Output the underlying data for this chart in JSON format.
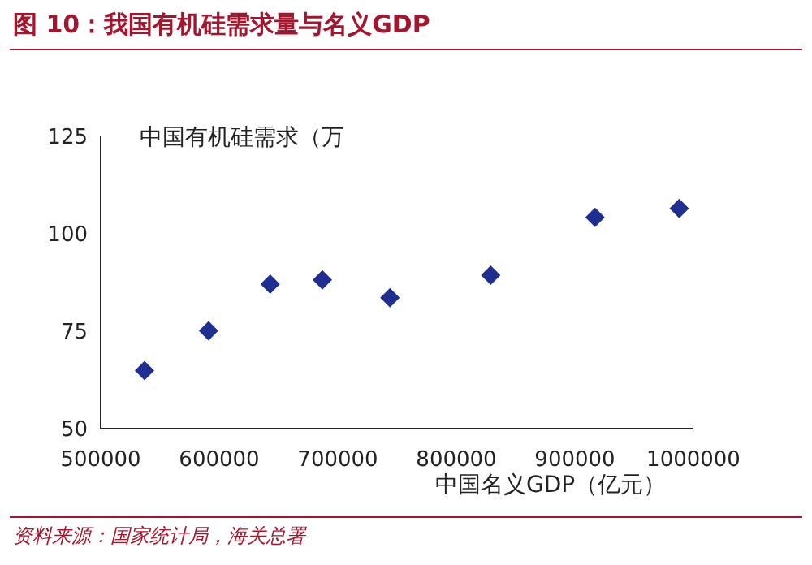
{
  "chart_data": {
    "type": "scatter",
    "title": "图 10：我国有机硅需求量与名义GDP",
    "xlabel": "中国名义GDP（亿元）",
    "ylabel": "中国有机硅需求（万",
    "x": [
      537000,
      591000,
      643000,
      687000,
      744000,
      829000,
      917000,
      988000
    ],
    "series": [
      {
        "color": "#1f2f8f",
        "values": [
          64.9,
          75.1,
          87.1,
          88.2,
          83.6,
          89.4,
          104.2,
          106.5
        ]
      }
    ],
    "xlim": [
      500000,
      1000000
    ],
    "xticks": [
      500000,
      600000,
      700000,
      800000,
      900000,
      1000000
    ],
    "ylim": [
      50,
      125
    ],
    "yticks": [
      50,
      75,
      100,
      125
    ],
    "grid": false,
    "legend": false,
    "marker": "diamond",
    "annotations": [
      "资料来源：国家统计局，海关总署"
    ]
  }
}
